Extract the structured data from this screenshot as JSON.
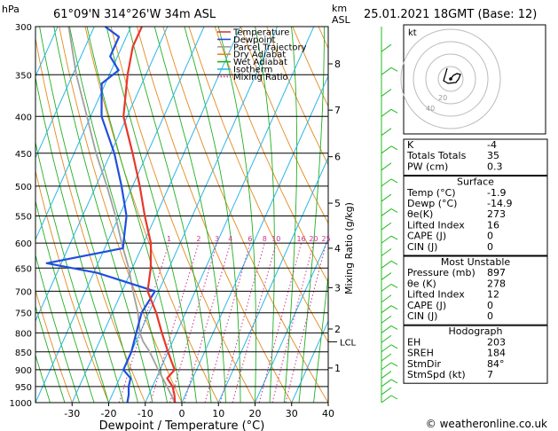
{
  "header": {
    "location": "61°09'N  314°26'W  34m  ASL",
    "datetime": "25.01.2021  18GMT  (Base: 12)",
    "hpa_label": "hPa",
    "km_label": "km",
    "asl_label": "ASL"
  },
  "colors": {
    "temperature": "#e8372b",
    "dewpoint": "#1f4fe0",
    "parcel": "#a0a0a0",
    "dry_adiabat": "#e38a1e",
    "wet_adiabat": "#22b022",
    "isotherm": "#29b6e6",
    "mixing_ratio": "#d0308f",
    "wind_barb": "#22bb22"
  },
  "legend": [
    {
      "label": "Temperature",
      "color": "#e8372b",
      "style": "solid"
    },
    {
      "label": "Dewpoint",
      "color": "#1f4fe0",
      "style": "solid"
    },
    {
      "label": "Parcel Trajectory",
      "color": "#a0a0a0",
      "style": "solid"
    },
    {
      "label": "Dry Adiabat",
      "color": "#e38a1e",
      "style": "solid"
    },
    {
      "label": "Wet Adiabat",
      "color": "#22b022",
      "style": "solid"
    },
    {
      "label": "Isotherm",
      "color": "#29b6e6",
      "style": "solid"
    },
    {
      "label": "Mixing Ratio",
      "color": "#d0308f",
      "style": "dotted"
    }
  ],
  "chart_data": {
    "type": "line",
    "title": "",
    "xlabel": "Dewpoint / Temperature (°C)",
    "ylabel": "",
    "right_axis_label": "Mixing Ratio (g/kg)",
    "xlim": [
      -40,
      40
    ],
    "x_ticks": [
      -30,
      -20,
      -10,
      0,
      10,
      20,
      30,
      40
    ],
    "pressure_levels": [
      300,
      350,
      400,
      450,
      500,
      550,
      600,
      650,
      700,
      750,
      800,
      850,
      900,
      950,
      1000
    ],
    "height_km_ticks": [
      {
        "label": "8",
        "p": 338
      },
      {
        "label": "7",
        "p": 392
      },
      {
        "label": "6",
        "p": 455
      },
      {
        "label": "5",
        "p": 528
      },
      {
        "label": "4",
        "p": 610
      },
      {
        "label": "3",
        "p": 692
      },
      {
        "label": "2",
        "p": 790
      },
      {
        "label": "1",
        "p": 895
      }
    ],
    "lcl": {
      "label": "LCL",
      "p": 823
    },
    "mixing_ratio_labels": [
      "1",
      "2",
      "3",
      "4",
      "6",
      "8",
      "10",
      "16",
      "20",
      "25"
    ],
    "mixing_ratio_values": [
      1,
      2,
      3,
      4,
      6,
      8,
      10,
      16,
      20,
      25
    ],
    "series": [
      {
        "key": "temperature",
        "points": [
          [
            1000,
            -1.9
          ],
          [
            975,
            -3
          ],
          [
            950,
            -4.5
          ],
          [
            925,
            -7
          ],
          [
            900,
            -6
          ],
          [
            875,
            -8
          ],
          [
            850,
            -10
          ],
          [
            800,
            -14
          ],
          [
            750,
            -18
          ],
          [
            700,
            -23
          ],
          [
            650,
            -25
          ],
          [
            600,
            -28
          ],
          [
            550,
            -33
          ],
          [
            500,
            -38
          ],
          [
            450,
            -44
          ],
          [
            400,
            -51
          ],
          [
            350,
            -55
          ],
          [
            320,
            -57
          ],
          [
            300,
            -57
          ]
        ]
      },
      {
        "key": "dewpoint",
        "points": [
          [
            1000,
            -14.9
          ],
          [
            975,
            -15.5
          ],
          [
            950,
            -16.5
          ],
          [
            925,
            -17
          ],
          [
            900,
            -20
          ],
          [
            850,
            -20
          ],
          [
            800,
            -21
          ],
          [
            750,
            -22
          ],
          [
            700,
            -21
          ],
          [
            660,
            -39
          ],
          [
            640,
            -54
          ],
          [
            610,
            -35
          ],
          [
            590,
            -36
          ],
          [
            550,
            -38
          ],
          [
            500,
            -43
          ],
          [
            450,
            -49
          ],
          [
            400,
            -57
          ],
          [
            360,
            -61
          ],
          [
            345,
            -58
          ],
          [
            330,
            -62
          ],
          [
            310,
            -62
          ],
          [
            300,
            -67
          ]
        ]
      },
      {
        "key": "parcel",
        "points": [
          [
            1000,
            -1.9
          ],
          [
            950,
            -6
          ],
          [
            900,
            -10.5
          ],
          [
            850,
            -15
          ],
          [
            823,
            -18
          ],
          [
            800,
            -20
          ],
          [
            750,
            -23
          ],
          [
            700,
            -27
          ],
          [
            650,
            -31
          ],
          [
            600,
            -36
          ],
          [
            550,
            -41
          ],
          [
            500,
            -47
          ],
          [
            450,
            -54
          ],
          [
            400,
            -61
          ],
          [
            350,
            -69
          ],
          [
            300,
            -77
          ]
        ]
      }
    ]
  },
  "indices": {
    "rows": [
      {
        "label": "K",
        "value": "-4"
      },
      {
        "label": "Totals Totals",
        "value": "35"
      },
      {
        "label": "PW (cm)",
        "value": "0.3"
      }
    ]
  },
  "surface": {
    "title": "Surface",
    "rows": [
      {
        "label": "Temp (°C)",
        "value": "-1.9"
      },
      {
        "label": "Dewp (°C)",
        "value": "-14.9"
      },
      {
        "label": "θe(K)",
        "value": "273"
      },
      {
        "label": "Lifted Index",
        "value": "16"
      },
      {
        "label": "CAPE (J)",
        "value": "0"
      },
      {
        "label": "CIN (J)",
        "value": "0"
      }
    ]
  },
  "most_unstable": {
    "title": "Most Unstable",
    "rows": [
      {
        "label": "Pressure (mb)",
        "value": "897"
      },
      {
        "label": "θe (K)",
        "value": "278"
      },
      {
        "label": "Lifted Index",
        "value": "12"
      },
      {
        "label": "CAPE (J)",
        "value": "0"
      },
      {
        "label": "CIN (J)",
        "value": "0"
      }
    ]
  },
  "hodograph": {
    "title": "Hodograph",
    "box_label": "kt",
    "ring_labels": [
      "20",
      "40"
    ],
    "trace": [
      [
        0,
        0
      ],
      [
        3,
        -4
      ],
      [
        7,
        -6
      ],
      [
        11,
        -5
      ],
      [
        9,
        0
      ],
      [
        6,
        4
      ],
      [
        -3,
        5
      ],
      [
        -8,
        2
      ],
      [
        -6,
        -5
      ],
      [
        -4,
        -12
      ]
    ],
    "rows": [
      {
        "label": "EH",
        "value": "203"
      },
      {
        "label": "SREH",
        "value": "184"
      },
      {
        "label": "StmDir",
        "value": "84°"
      },
      {
        "label": "StmSpd (kt)",
        "value": "7"
      }
    ]
  },
  "footer": {
    "copyright": "© weatheronline.co.uk"
  }
}
